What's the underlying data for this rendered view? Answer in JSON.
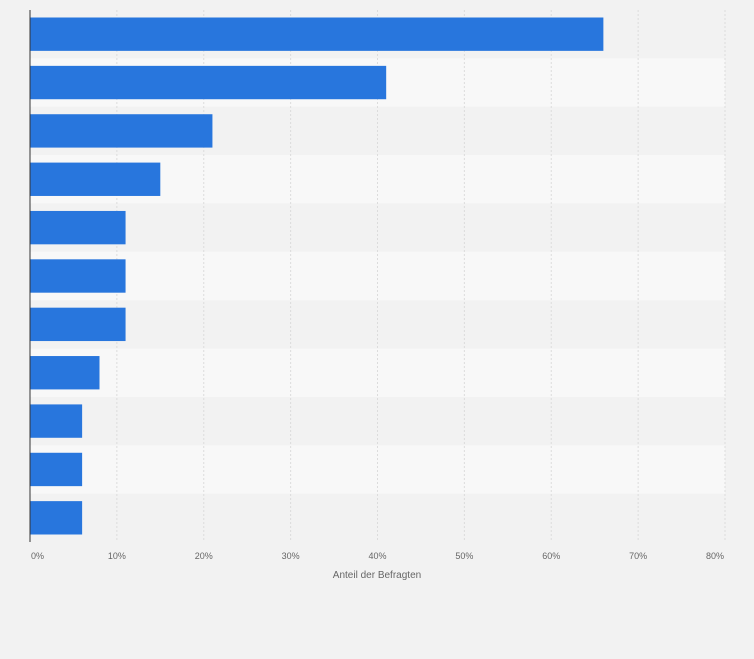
{
  "chart_data": {
    "type": "bar",
    "orientation": "horizontal",
    "values": [
      66,
      41,
      21,
      15,
      11,
      11,
      11,
      8,
      6,
      6,
      6
    ],
    "xlabel": "Anteil der Befragten",
    "xlim": [
      0,
      80
    ],
    "xtick_values": [
      0,
      10,
      20,
      30,
      40,
      50,
      60,
      70,
      80
    ],
    "xtick_labels": [
      "0%",
      "10%",
      "20%",
      "30%",
      "40%",
      "50%",
      "60%",
      "70%",
      "80%"
    ],
    "grid": true,
    "legend": "none"
  },
  "colors": {
    "background": "#f2f2f2",
    "stripe": "#f8f8f8",
    "bar": "#2876dd",
    "grid": "#dcdcdc",
    "axis": "#333333",
    "text": "#666666"
  }
}
